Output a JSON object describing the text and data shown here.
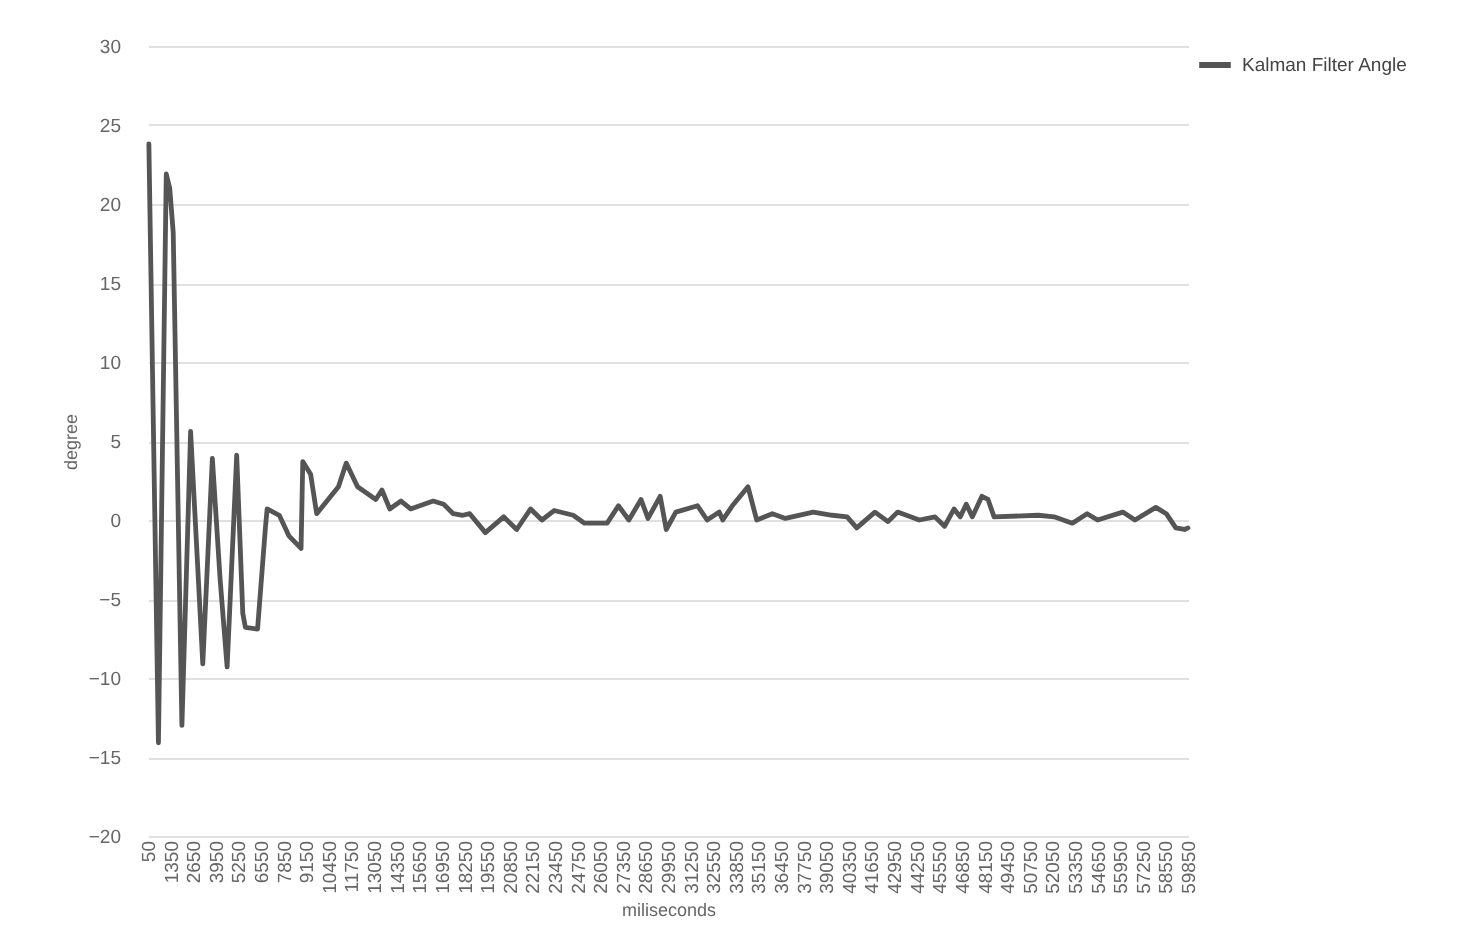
{
  "chart_data": {
    "type": "line",
    "xlabel": "miliseconds",
    "ylabel": "degree",
    "x": [
      100,
      650,
      1100,
      1300,
      1500,
      2000,
      2500,
      3200,
      3750,
      4200,
      4600,
      5150,
      5500,
      5650,
      6350,
      6800,
      6900,
      7600,
      8150,
      8850,
      8950,
      9400,
      9750,
      11000,
      11450,
      12100,
      13150,
      13500,
      13950,
      14600,
      15150,
      16450,
      17050,
      17600,
      18150,
      18550,
      19450,
      20500,
      21250,
      22050,
      22700,
      23400,
      24500,
      25150,
      26450,
      27100,
      27700,
      28400,
      28800,
      29500,
      29850,
      30400,
      31650,
      32200,
      32900,
      33100,
      33650,
      34550,
      35050,
      35950,
      36700,
      38300,
      39400,
      40250,
      40800,
      41850,
      42600,
      43150,
      44400,
      45300,
      45850,
      46400,
      46750,
      47100,
      47450,
      48000,
      48350,
      48700,
      51250,
      52150,
      53200,
      54050,
      54650,
      56100,
      56800,
      58000,
      58600,
      59150,
      59650,
      59850
    ],
    "series": [
      {
        "name": "Kalman Filter Angle",
        "color": "#555555",
        "values": [
          23.8,
          -14.1,
          21.9,
          21,
          18.2,
          -13,
          5.6,
          -9.1,
          3.9,
          -3.8,
          -9.3,
          4.1,
          -5.9,
          -6.8,
          -6.9,
          -0.5,
          0.7,
          0.3,
          -1,
          -1.8,
          3.7,
          2.9,
          0.4,
          2.1,
          3.6,
          2.1,
          1.3,
          1.9,
          0.7,
          1.2,
          0.7,
          1.2,
          1,
          0.4,
          0.3,
          0.4,
          -0.8,
          0.2,
          -0.6,
          0.7,
          0,
          0.6,
          0.3,
          -0.2,
          -0.2,
          0.9,
          0,
          1.3,
          0.1,
          1.5,
          -0.6,
          0.5,
          0.9,
          0,
          0.5,
          0,
          0.9,
          2.1,
          0,
          0.4,
          0.1,
          0.5,
          0.3,
          0.2,
          -0.5,
          0.5,
          -0.1,
          0.5,
          0,
          0.2,
          -0.4,
          0.7,
          0.2,
          1,
          0.2,
          1.5,
          1.3,
          0.2,
          0.3,
          0.2,
          -0.2,
          0.4,
          0,
          0.5,
          0,
          0.8,
          0.4,
          -0.5,
          -0.6,
          -0.5
        ]
      }
    ],
    "xlim": [
      50,
      59850
    ],
    "xticks": [
      50,
      1350,
      2650,
      3950,
      5250,
      6550,
      7850,
      9150,
      10450,
      11750,
      13050,
      14350,
      15650,
      16950,
      18250,
      19550,
      20850,
      22150,
      23450,
      24750,
      26050,
      27350,
      28650,
      29950,
      31250,
      32550,
      33850,
      35150,
      36450,
      37750,
      39050,
      40350,
      41650,
      42950,
      44250,
      45550,
      46850,
      48150,
      49450,
      50750,
      52050,
      53350,
      54650,
      55950,
      57250,
      58550,
      59850
    ],
    "ylim": [
      -20,
      30
    ],
    "yticks": [
      -20,
      -15,
      -10,
      -5,
      0,
      5,
      10,
      15,
      20,
      25,
      30
    ],
    "grid": "y",
    "legend": "right",
    "line_style": "solid"
  }
}
